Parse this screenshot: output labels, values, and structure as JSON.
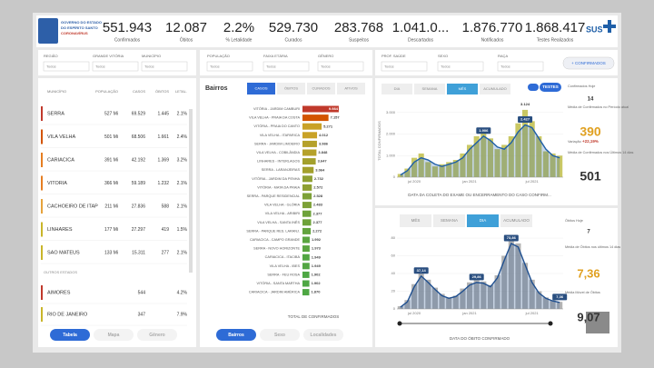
{
  "header": {
    "logo_lines": [
      "GOVERNO DO ESTADO",
      "DO ESPÍRITO SANTO",
      "CORONAVÍRUS"
    ],
    "brand": "SUS",
    "kpis": [
      {
        "value": "551.943",
        "label": "Confirmados"
      },
      {
        "value": "12.087",
        "label": "Óbitos"
      },
      {
        "value": "2.2%",
        "label": "% Letalidade"
      },
      {
        "value": "529.730",
        "label": "Curados"
      },
      {
        "value": "283.768",
        "label": "Suspeitos"
      },
      {
        "value": "1.041.0...",
        "label": "Descartados"
      },
      {
        "value": "1.876.770",
        "label": "Notificados"
      },
      {
        "value": "1.868.417",
        "label": "Testes Realizados"
      }
    ]
  },
  "filters": [
    {
      "label": "REGIÃO",
      "value": "Todos"
    },
    {
      "label": "GRANDE VITÓRIA",
      "value": "Todos"
    },
    {
      "label": "MUNICÍPIO",
      "value": "Todos"
    },
    {
      "label": "POPULAÇÃO",
      "value": "Todos"
    },
    {
      "label": "FAIXA ETÁRIA",
      "value": "Todos"
    },
    {
      "label": "GÊNERO",
      "value": "Todos"
    },
    {
      "label": "PROF. SAÚDE",
      "value": "Todos"
    },
    {
      "label": "SEXO",
      "value": "Todos"
    },
    {
      "label": "RAÇA",
      "value": "Todos"
    }
  ],
  "filter_button": "+ CONFIRMADOS",
  "table": {
    "columns": [
      "MUNICÍPIO",
      "POPULAÇÃO",
      "CASOS",
      "ÓBITOS",
      "LETAL."
    ],
    "rows": [
      [
        "SERRA",
        "527 Mi",
        "69.529",
        "1.445",
        "2.1%"
      ],
      [
        "VILA VELHA",
        "501 Mi",
        "68.506",
        "1.661",
        "2.4%"
      ],
      [
        "CARIACICA",
        "391 Mi",
        "42.192",
        "1.369",
        "3.2%"
      ],
      [
        "VITORIA",
        "366 Mi",
        "59.189",
        "1.232",
        "2.1%"
      ],
      [
        "CACHOEIRO DE ITAP",
        "211 Mi",
        "27.836",
        "588",
        "2.1%"
      ],
      [
        "LINHARES",
        "177 Mi",
        "27.297",
        "419",
        "1.5%"
      ],
      [
        "SAO MATEUS",
        "133 Mi",
        "15.311",
        "277",
        "2.1%"
      ]
    ],
    "colors": [
      "#c0392b",
      "#d35400",
      "#e67e22",
      "#e67e22",
      "#e6a23c",
      "#c9b52a",
      "#c9b52a"
    ],
    "section": "OUTROS ESTADOS",
    "other_rows": [
      [
        "AIMORES",
        "",
        "544",
        "",
        "4.2%"
      ],
      [
        "RIO DE JANEIRO",
        "",
        "347",
        "",
        "7.9%"
      ]
    ],
    "other_colors": [
      "#c0392b",
      "#c9b52a"
    ],
    "buttons": [
      "Tabela",
      "Mapa",
      "Gênero"
    ]
  },
  "bairros": {
    "title": "Bairros",
    "tabs": [
      "CASOS",
      "ÓBITOS",
      "CURADOS",
      "ATIVOS"
    ],
    "buttons": [
      "Bairros",
      "Sexo",
      "Localidades"
    ]
  },
  "cases_panel": {
    "tabs": [
      "DIA",
      "SEMANA",
      "MÊS",
      "ACUMULADO"
    ],
    "toggle": "TESTES",
    "side": [
      {
        "label": "Confirmados Hoje",
        "value": "14"
      },
      {
        "label": "Média de Confirmados no Período atual",
        "value": "390"
      },
      {
        "label": "Variação",
        "value": "+22,19%"
      },
      {
        "label": "Média de Confirmados nos Últimos 14 dias",
        "value": "501"
      }
    ]
  },
  "deaths_panel": {
    "tabs": [
      "MÊS",
      "SEMANA",
      "DIA",
      "ACUMULADO"
    ],
    "side": [
      {
        "label": "Óbitos Hoje",
        "value": "7"
      },
      {
        "label": "Média de Óbitos nos últimos 14 dias",
        "value": "7,36"
      },
      {
        "label": "Média Móvel de Óbitos",
        "value": "9,07"
      }
    ]
  },
  "chart_data": [
    {
      "type": "hbar",
      "xlabel": "TOTAL DE CONFIRMADOS",
      "xlim": [
        0,
        10000
      ],
      "categories": [
        "VITÓRIA - JARDIM CAMBURI",
        "VILA VELHA - PRAIA DA COSTA",
        "VITÓRIA - PRAIA DO CANTO",
        "VILA VELHA - ITAPARICA",
        "SERRA - JARDIM LIMOEIRO",
        "VILA VELHA - COBILÂNDIA",
        "LINHARES - INTERLAGOS",
        "SERRA - LARANJEIRAS",
        "VITÓRIA - JARDIM DA PENHA",
        "VITÓRIA - MATA DA PRAIA",
        "SERRA - PARQUE RESIDENCIAL",
        "VILA VELHA - GLÓRIA",
        "VILA VELHA - ARIBIRI",
        "VILA VELHA - SANTA INÊS",
        "SERRA - PARQUE RES. LARANJ.",
        "CARIACICA - CAMPO GRANDE",
        "SERRA - NOVO HORIZONTE",
        "CARIACICA - ITACIBÁ",
        "VILA VELHA - IBES",
        "SERRA - FEU ROSA",
        "VITÓRIA - SANTA MARTHA",
        "CARIACICA - JARDIM AMÉRICA"
      ],
      "values": [
        9984,
        7157,
        5271,
        4012,
        3986,
        3848,
        3647,
        3064,
        2732,
        2572,
        2528,
        2483,
        2377,
        2377,
        2272,
        1992,
        1973,
        1949,
        1949,
        1902,
        1902,
        1870
      ],
      "value_labels": [
        "9.984",
        "7.157",
        "5.271",
        "4.012",
        "3.986",
        "3.848",
        "3.647",
        "3.064",
        "2.732",
        "2.572",
        "2.528",
        "2.483",
        "2.377",
        "2.377",
        "2.272",
        "1.992",
        "1.973",
        "1.949",
        "1.949",
        "1.902",
        "1.902",
        "1.870"
      ],
      "colors": [
        "#c0392b",
        "#d35400",
        "#c9a227",
        "#c9a227",
        "#b5a12a",
        "#b5a12a",
        "#a3a02c",
        "#a3a02c",
        "#8fa032",
        "#8fa032",
        "#7da137",
        "#7da137",
        "#6ea23a",
        "#6ea23a",
        "#62a33e",
        "#5aa540",
        "#5aa540",
        "#52a642",
        "#52a642",
        "#4ea744",
        "#4ea744",
        "#4ea744"
      ]
    },
    {
      "type": "bar_line",
      "ylabel": "TOTAL CONFIRMADOS",
      "xlabel": "DATA DA COLETA DO EXAME OU ENCERRAMENTO DO CASO CONFIRM...",
      "categories": [
        null,
        null,
        "jul 2020",
        null,
        null,
        null,
        null,
        null,
        null,
        null,
        "jan 2021",
        null,
        null,
        null,
        null,
        null,
        null,
        null,
        null,
        "jul 2021",
        null,
        null,
        null,
        null
      ],
      "ylim": [
        0,
        3500
      ],
      "yticks": [
        0,
        {
          "value": 1000,
          "label": "1.000"
        },
        {
          "value": 2000,
          "label": "2.000"
        },
        {
          "value": 3000,
          "label": "3.000"
        }
      ],
      "series": [
        {
          "type": "bar",
          "color": "#b8b530",
          "values": [
            150,
            400,
            900,
            1100,
            700,
            500,
            600,
            700,
            800,
            1100,
            1500,
            1900,
            2200,
            1800,
            1300,
            1500,
            1900,
            2500,
            3124,
            2600,
            1900,
            1200,
            1100,
            1000
          ],
          "value_labels": [
            null,
            null,
            null,
            null,
            null,
            null,
            null,
            null,
            null,
            null,
            null,
            null,
            null,
            null,
            null,
            null,
            null,
            null,
            "3.124",
            null,
            null,
            null,
            null,
            null
          ]
        },
        {
          "type": "line",
          "color": "#1f5fa8",
          "values": [
            100,
            300,
            700,
            900,
            800,
            600,
            500,
            600,
            700,
            900,
            1300,
            1600,
            1906,
            1700,
            1400,
            1300,
            1600,
            2100,
            2427,
            2300,
            1800,
            1300,
            1000,
            900
          ],
          "value_labels": [
            null,
            null,
            null,
            null,
            null,
            null,
            null,
            null,
            null,
            null,
            null,
            null,
            "1.906",
            null,
            null,
            null,
            null,
            null,
            "2.427",
            null,
            null,
            null,
            null,
            null
          ]
        }
      ]
    },
    {
      "type": "bar_line",
      "xlabel": "DATA DO ÓBITO CONFIRMADO",
      "categories": [
        null,
        null,
        "jul 2020",
        null,
        null,
        null,
        null,
        null,
        null,
        null,
        "jan 2021",
        null,
        null,
        null,
        null,
        null,
        null,
        null,
        null,
        "jul 2021",
        null,
        null,
        null,
        null
      ],
      "ylim": [
        0,
        80
      ],
      "yticks": [
        0,
        20,
        40,
        60,
        80
      ],
      "series": [
        {
          "type": "bar",
          "color": "#9a9a9a",
          "values": [
            3,
            10,
            28,
            42,
            33,
            24,
            17,
            13,
            15,
            23,
            30,
            33,
            31,
            27,
            38,
            60,
            78,
            74,
            52,
            33,
            20,
            13,
            10,
            8
          ],
          "value_labels": [
            null,
            null,
            null,
            null,
            null,
            null,
            null,
            null,
            null,
            null,
            null,
            null,
            null,
            null,
            null,
            null,
            null,
            null,
            null,
            null,
            null,
            null,
            null,
            null
          ]
        },
        {
          "type": "line",
          "color": "#1f4f8f",
          "values": [
            2,
            8,
            25,
            37.14,
            30,
            22,
            15,
            12,
            14,
            20,
            27,
            29.86,
            29,
            25,
            35,
            55,
            73.86,
            70,
            50,
            30,
            18,
            12,
            9,
            7.36
          ],
          "value_labels": [
            null,
            null,
            null,
            "37,14",
            null,
            null,
            null,
            null,
            null,
            null,
            null,
            "29,86",
            null,
            null,
            null,
            null,
            "73,86",
            null,
            null,
            null,
            null,
            null,
            null,
            "7,36"
          ]
        }
      ]
    }
  ]
}
